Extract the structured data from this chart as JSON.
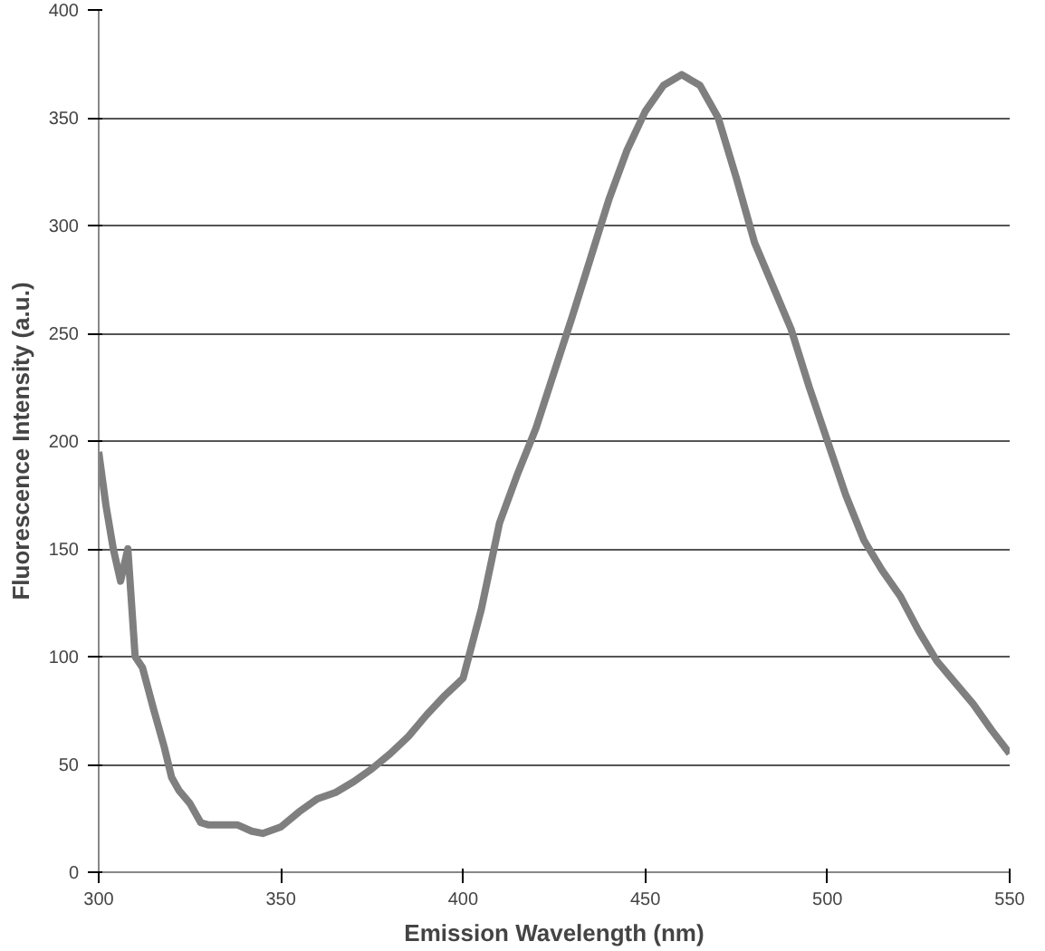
{
  "chart_data": {
    "type": "line",
    "xlabel": "Emission Wavelength (nm)",
    "ylabel": "Fluorescence Intensity (a.u.)",
    "xlim": [
      300,
      550
    ],
    "xticks": [
      300,
      350,
      400,
      450,
      500,
      550
    ],
    "ylim": [
      0,
      400
    ],
    "yticks": [
      0,
      50,
      100,
      150,
      200,
      250,
      300,
      350,
      400
    ],
    "grid": "y",
    "marker": "none",
    "line_style": "solid",
    "series": [
      {
        "color": "#7f7f7f",
        "x": [
          300,
          302,
          304,
          306,
          308,
          310,
          312,
          315,
          318,
          320,
          322,
          325,
          328,
          330,
          335,
          338,
          342,
          345,
          350,
          355,
          360,
          365,
          370,
          375,
          380,
          385,
          390,
          395,
          400,
          405,
          410,
          415,
          420,
          425,
          430,
          435,
          440,
          445,
          450,
          455,
          460,
          465,
          470,
          475,
          480,
          485,
          490,
          495,
          500,
          505,
          510,
          515,
          520,
          525,
          530,
          535,
          540,
          545,
          550
        ],
        "values": [
          195,
          170,
          150,
          135,
          150,
          100,
          95,
          76,
          58,
          44,
          38,
          32,
          23,
          22,
          22,
          22,
          19,
          18,
          21,
          28,
          34,
          37,
          42,
          48,
          55,
          63,
          73,
          82,
          90,
          122,
          162,
          185,
          206,
          232,
          258,
          285,
          312,
          335,
          353,
          365,
          370,
          365,
          350,
          322,
          292,
          272,
          252,
          225,
          200,
          175,
          154,
          140,
          128,
          112,
          98,
          88,
          78,
          66,
          55
        ]
      }
    ]
  }
}
